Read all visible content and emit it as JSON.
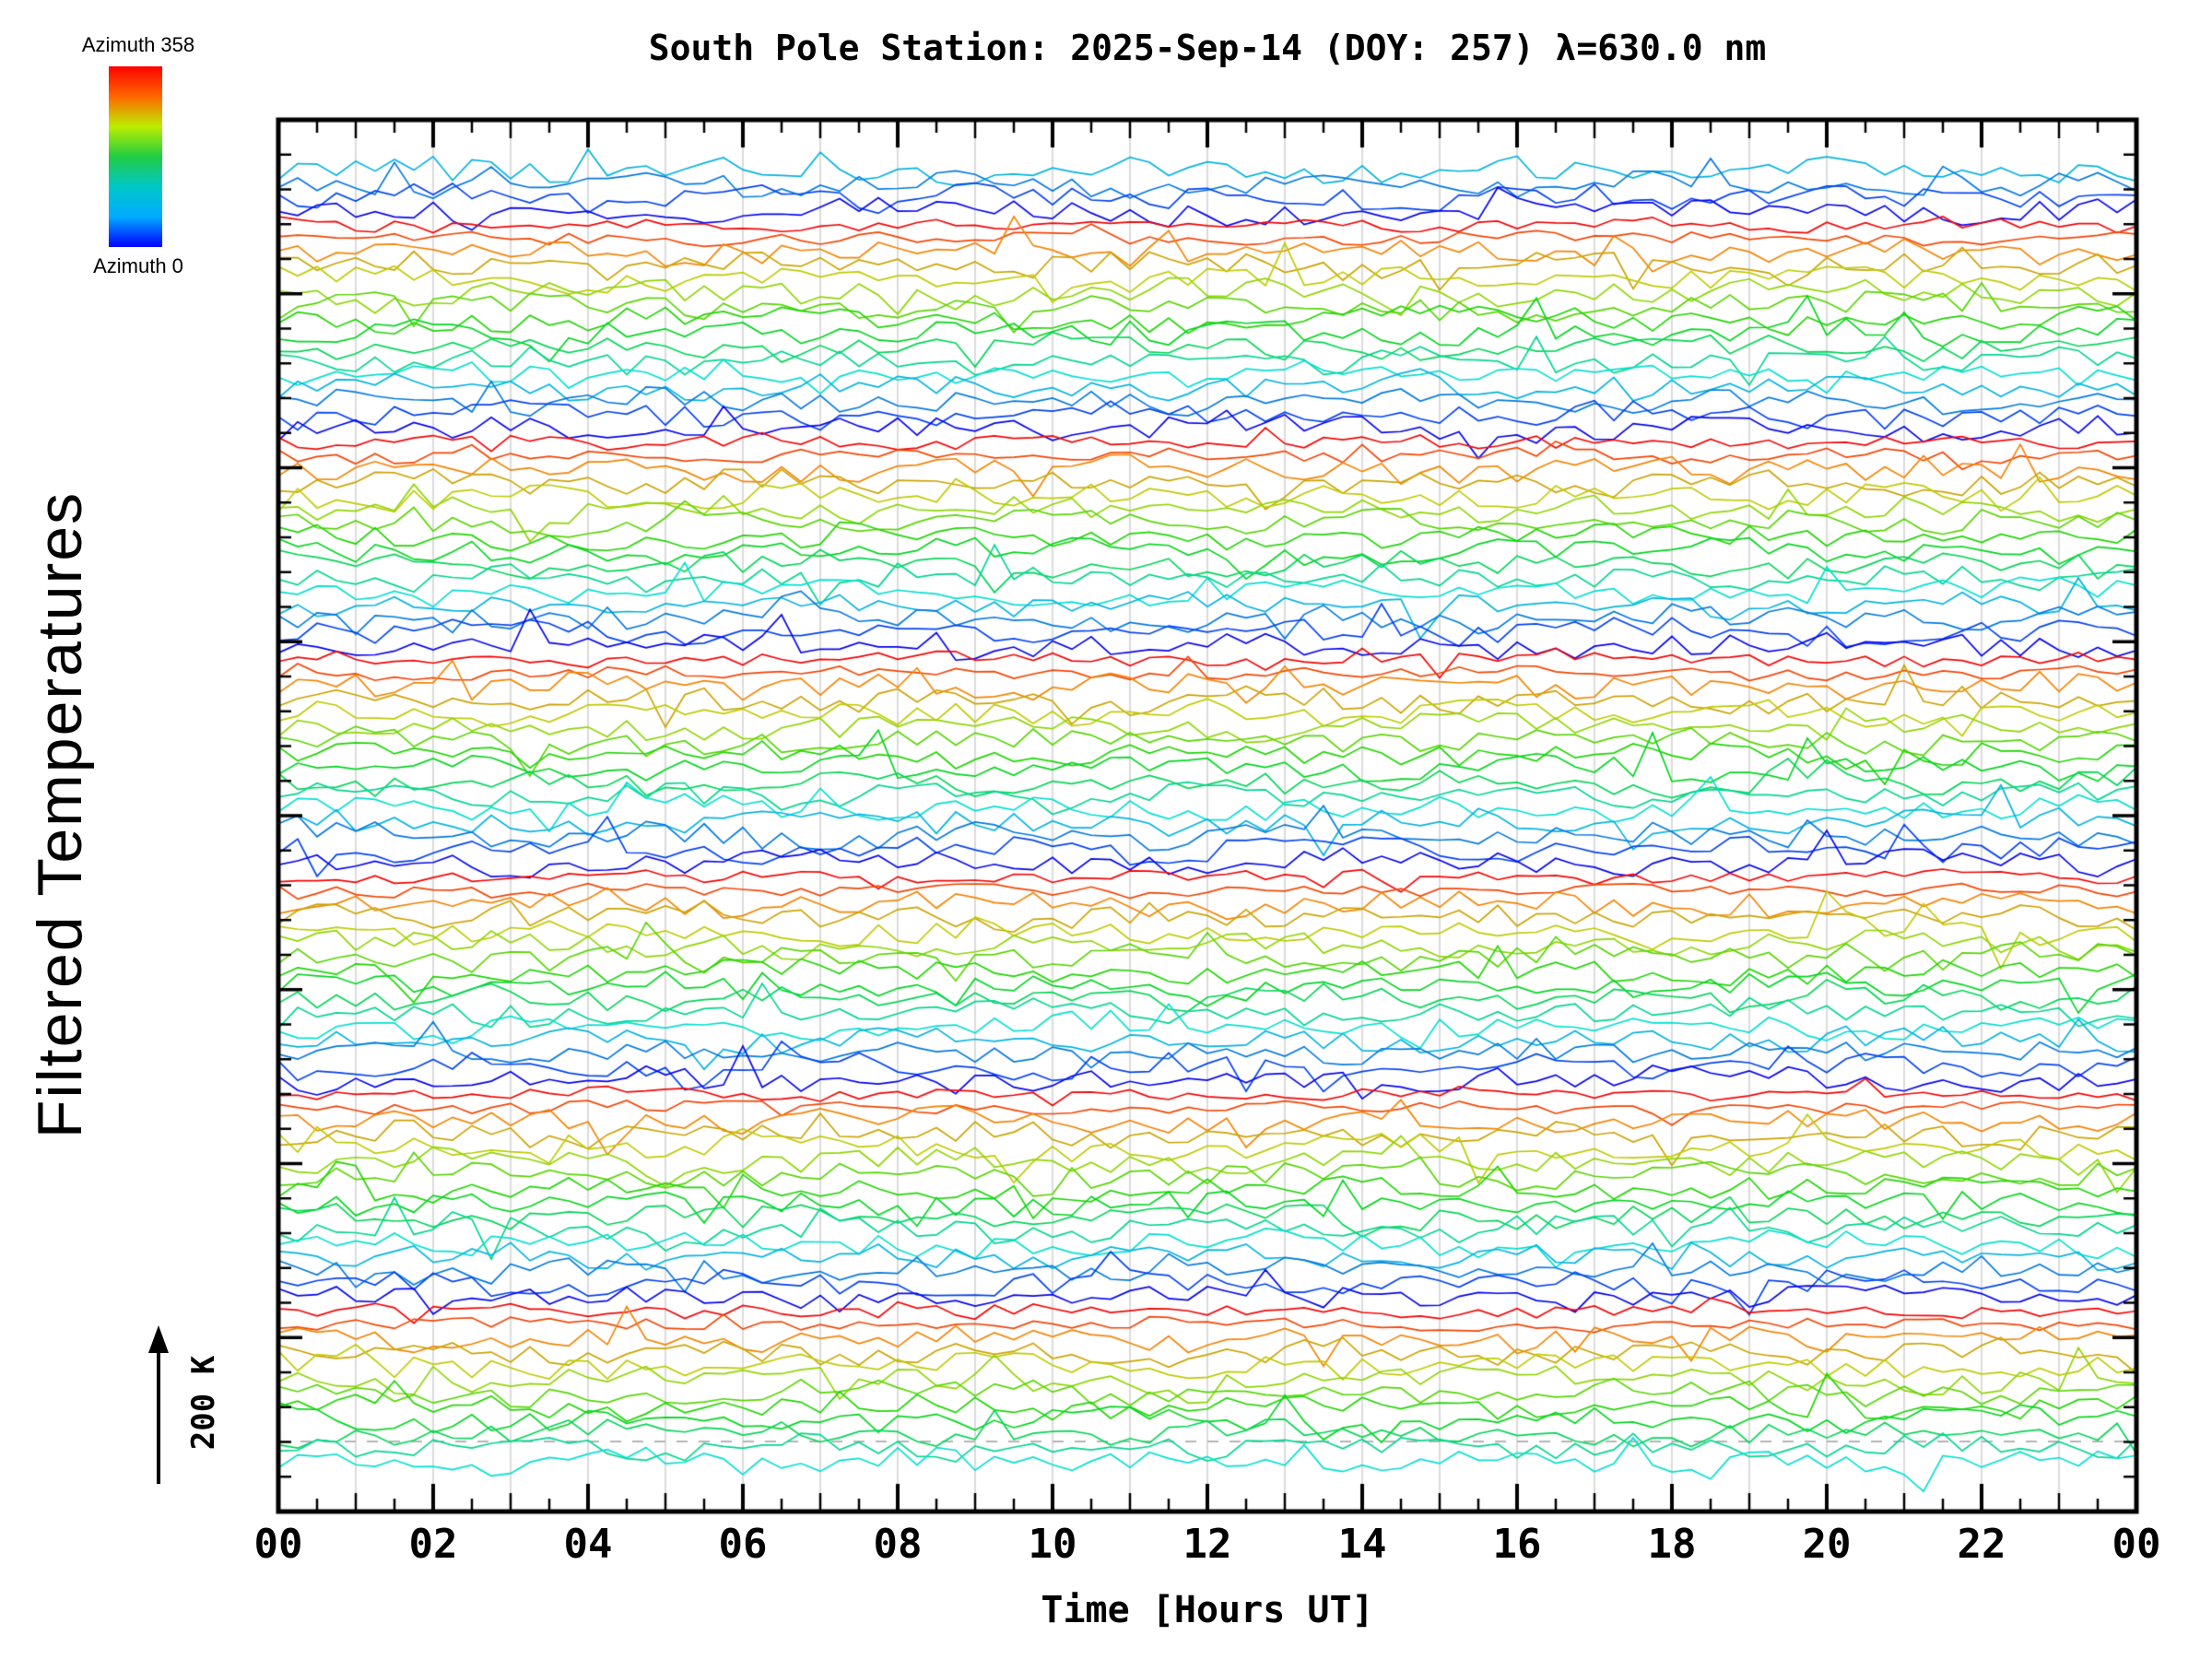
{
  "chart_data": {
    "type": "line",
    "title": "South Pole Station: 2025-Sep-14 (DOY: 257) λ=630.0 nm",
    "xlabel": "Time [Hours UT]",
    "ylabel": "Filtered Temperatures",
    "x_range_hours": [
      0,
      24
    ],
    "x_tick_labels": [
      "00",
      "02",
      "04",
      "06",
      "08",
      "10",
      "12",
      "14",
      "16",
      "18",
      "20",
      "22",
      "00"
    ],
    "x_major_tick_step_hours": 2,
    "x_minor_tick_step_hours": 0.5,
    "grid": {
      "vertical_step_hours": 1,
      "color": "#dcdcdc"
    },
    "reference_line": {
      "style": "dashed",
      "color": "#b4b4b4"
    },
    "colorbar": {
      "label_top": "Azimuth 358",
      "label_bottom": "Azimuth 0",
      "azimuth_min": 0,
      "azimuth_max": 358,
      "gradient_top_to_bottom": [
        "#ff0000",
        "#ff6600",
        "#bbee00",
        "#22cc44",
        "#00c8c8",
        "#00aaff",
        "#0000ff"
      ]
    },
    "scale_bar": {
      "label": "200 K",
      "kelvin": 200
    },
    "series": {
      "description": "Stacked noisy airglow temperature traces, one per azimuth scan, color-coded by azimuth (rainbow bands red→blue repeating from top to bottom)",
      "trace_count": 96,
      "traces_per_color_cycle": 16,
      "points_per_trace": 97,
      "sample_interval_minutes": 15
    },
    "seed": 42
  }
}
